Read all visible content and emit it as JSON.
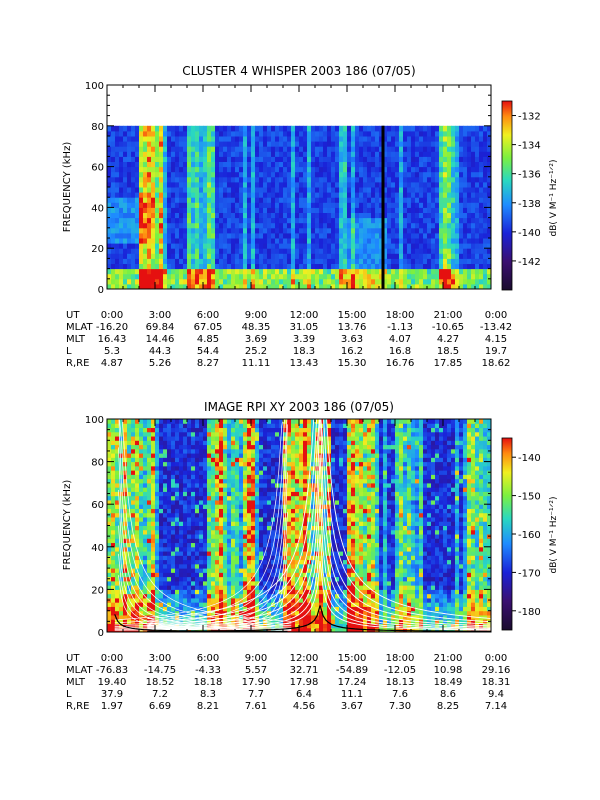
{
  "chart_data": [
    {
      "type": "heatmap",
      "title": "CLUSTER 4 WHISPER 2003 186 (07/05)",
      "ylabel": "FREQUENCY (kHz)",
      "ylim": [
        0,
        100
      ],
      "y_ticks": [
        "0",
        "20",
        "40",
        "60",
        "80",
        "100"
      ],
      "data_ceiling_khz": 80,
      "colorbar": {
        "label": "dB( V M⁻¹ Hz⁻¹ᐟ²)",
        "range": [
          -144,
          -131
        ],
        "ticks": [
          "-132",
          "-134",
          "-136",
          "-138",
          "-140",
          "-142"
        ],
        "tick_values": [
          -132,
          -134,
          -136,
          -138,
          -140,
          -142
        ]
      },
      "marker_line_ut": "17:15",
      "ephemeris": {
        "rows": [
          {
            "label": "UT",
            "values": [
              "0:00",
              "3:00",
              "6:00",
              "9:00",
              "12:00",
              "15:00",
              "18:00",
              "21:00",
              "0:00"
            ]
          },
          {
            "label": "MLAT",
            "values": [
              "-16.20",
              "69.84",
              "67.05",
              "48.35",
              "31.05",
              "13.76",
              "-1.13",
              "-10.65",
              "-13.42"
            ]
          },
          {
            "label": "MLT",
            "values": [
              "16.43",
              "14.46",
              "4.85",
              "3.69",
              "3.39",
              "3.63",
              "4.07",
              "4.27",
              "4.15"
            ]
          },
          {
            "label": "L",
            "values": [
              "5.3",
              "44.3",
              "54.4",
              "25.2",
              "18.3",
              "16.2",
              "16.8",
              "18.5",
              "19.7"
            ]
          },
          {
            "label": "R,RE",
            "values": [
              "4.87",
              "5.26",
              "8.27",
              "11.11",
              "13.43",
              "15.30",
              "16.76",
              "17.85",
              "18.62"
            ]
          }
        ]
      }
    },
    {
      "type": "heatmap",
      "title": "IMAGE RPI XY 2003 186 (07/05)",
      "ylabel": "FREQUENCY (kHz)",
      "ylim": [
        0,
        100
      ],
      "y_ticks": [
        "0",
        "20",
        "40",
        "60",
        "80",
        "100"
      ],
      "colorbar": {
        "label": "dB( V M⁻¹ Hz⁻¹ᐟ²)",
        "range": [
          -185,
          -135
        ],
        "ticks": [
          "-140",
          "-150",
          "-160",
          "-170",
          "-180"
        ],
        "tick_values": [
          -140,
          -150,
          -160,
          -170,
          -180
        ]
      },
      "ephemeris": {
        "rows": [
          {
            "label": "UT",
            "values": [
              "0:00",
              "3:00",
              "6:00",
              "9:00",
              "12:00",
              "15:00",
              "18:00",
              "21:00",
              "0:00"
            ]
          },
          {
            "label": "MLAT",
            "values": [
              "-76.83",
              "-14.75",
              "-4.33",
              "5.57",
              "32.71",
              "-54.89",
              "-12.05",
              "10.98",
              "29.16"
            ]
          },
          {
            "label": "MLT",
            "values": [
              "19.40",
              "18.52",
              "18.18",
              "17.90",
              "17.98",
              "17.24",
              "18.13",
              "18.49",
              "18.31"
            ]
          },
          {
            "label": "L",
            "values": [
              "37.9",
              "7.2",
              "8.3",
              "7.7",
              "6.4",
              "11.1",
              "7.6",
              "8.6",
              "9.4"
            ]
          },
          {
            "label": "R,RE",
            "values": [
              "1.97",
              "6.69",
              "8.21",
              "7.61",
              "4.56",
              "3.67",
              "7.30",
              "8.25",
              "7.14"
            ]
          }
        ]
      }
    }
  ]
}
